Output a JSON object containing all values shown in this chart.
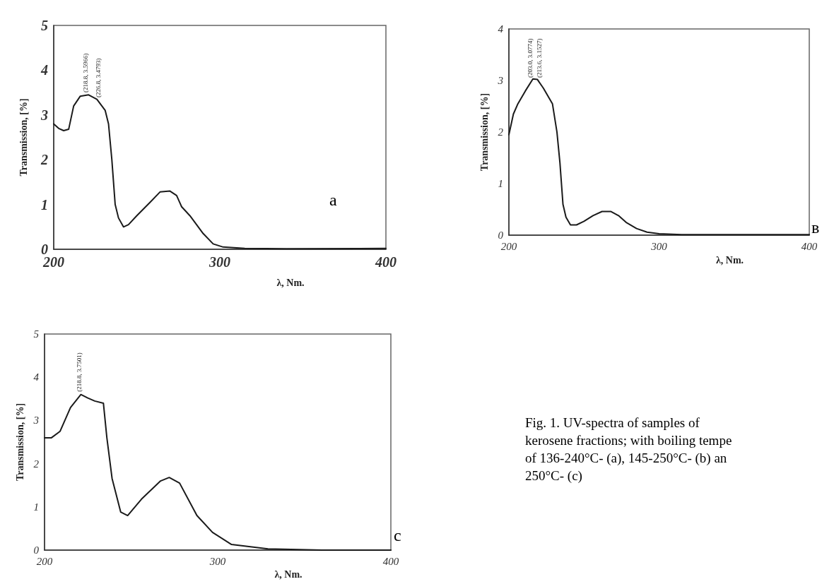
{
  "chart_data": [
    {
      "type": "line",
      "xlabel": "λ, Nm.",
      "ylabel": "Transmission, [%]",
      "xlim": [
        200,
        400
      ],
      "xticks": [
        200,
        300,
        400
      ],
      "ylim": [
        0,
        5
      ],
      "yticks": [
        0,
        1,
        2,
        3,
        4,
        5
      ],
      "grid": false,
      "marker": "none",
      "line_style": "solid",
      "series": [
        {
          "color": "#1a1a1a",
          "x": [
            200,
            203,
            206,
            209,
            212,
            216,
            221,
            226,
            231,
            233,
            235,
            237,
            239,
            242,
            245,
            250,
            258,
            264,
            270,
            274,
            277,
            282,
            290,
            296,
            302,
            315,
            340,
            400
          ],
          "values": [
            2.8,
            2.7,
            2.65,
            2.68,
            3.2,
            3.42,
            3.45,
            3.35,
            3.1,
            2.8,
            2.0,
            1.0,
            0.7,
            0.5,
            0.55,
            0.75,
            1.05,
            1.28,
            1.3,
            1.2,
            0.95,
            0.75,
            0.35,
            0.12,
            0.05,
            0.02,
            0.01,
            0.02
          ]
        }
      ],
      "annotations": [
        {
          "text": "(218.8, 3.5966)",
          "x": 219,
          "y": 3.44
        },
        {
          "text": "(226.8, 3.4793)",
          "x": 227,
          "y": 3.33
        },
        "a"
      ]
    },
    {
      "type": "line",
      "xlabel": "λ, Nm.",
      "ylabel": "Transmission, [%]",
      "xlim": [
        200,
        400
      ],
      "xticks": [
        200,
        300,
        400
      ],
      "ylim": [
        0,
        4
      ],
      "yticks": [
        0,
        1,
        2,
        3,
        4
      ],
      "grid": false,
      "marker": "none",
      "line_style": "solid",
      "series": [
        {
          "color": "#1a1a1a",
          "x": [
            200,
            203,
            206,
            211,
            216,
            219,
            223,
            229,
            232,
            234,
            236,
            238,
            241,
            245,
            250,
            256,
            262,
            268,
            273,
            278,
            285,
            292,
            300,
            315,
            400
          ],
          "values": [
            1.95,
            2.35,
            2.55,
            2.8,
            3.03,
            3.02,
            2.85,
            2.55,
            2.0,
            1.4,
            0.6,
            0.35,
            0.2,
            0.2,
            0.27,
            0.38,
            0.46,
            0.46,
            0.38,
            0.25,
            0.13,
            0.06,
            0.03,
            0.01,
            0.01
          ]
        }
      ],
      "annotations": [
        {
          "text": "(203.0, 3.0774)",
          "x": 214,
          "y": 3.0
        },
        {
          "text": "(213.6, 3.1527)",
          "x": 220,
          "y": 3.0
        },
        "в"
      ]
    },
    {
      "type": "line",
      "xlabel": "λ, Nm.",
      "ylabel": "Transmission, [%]",
      "xlim": [
        200,
        400
      ],
      "xticks": [
        200,
        300,
        400
      ],
      "ylim": [
        0,
        5
      ],
      "yticks": [
        0,
        1,
        2,
        3,
        4,
        5
      ],
      "grid": false,
      "marker": "none",
      "line_style": "solid",
      "series": [
        {
          "color": "#1a1a1a",
          "x": [
            200,
            204,
            209,
            215,
            221,
            225,
            229,
            234,
            236,
            239,
            244,
            248,
            256,
            267,
            272,
            278,
            288,
            297,
            308,
            329,
            360,
            400
          ],
          "values": [
            2.6,
            2.6,
            2.75,
            3.3,
            3.6,
            3.52,
            3.45,
            3.4,
            2.6,
            1.66,
            0.88,
            0.8,
            1.18,
            1.6,
            1.68,
            1.55,
            0.8,
            0.41,
            0.13,
            0.03,
            0.0,
            0.0
          ]
        }
      ],
      "annotations": [
        {
          "text": "(218.8, 3.7501)",
          "x": 220,
          "y": 3.6
        },
        "c"
      ]
    },
    {
      "type": "other",
      "annotations": [
        "Fig. 1. UV-spectra of samples of",
        "kerosene fractions; with boiling tempe",
        "of 136-240°C- (a), 145-250°C- (b) an",
        "250°C- (c)"
      ]
    }
  ]
}
